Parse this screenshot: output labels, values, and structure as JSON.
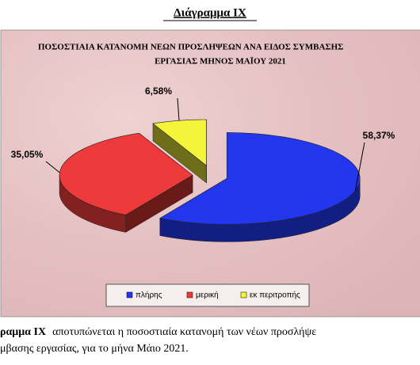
{
  "heading": "Διάγραμμα IX",
  "chart_data": {
    "type": "pie3d",
    "title": [
      "ΠΟΣΟΣΤΙΑΙΑ  ΚΑΤΑΝΟΜΗ  ΝΕΩΝ  ΠΡΟΣΛΗΨΕΩΝ ΑΝΑ ΕΙΔΟΣ ΣΥΜΒΑΣΗΣ",
      "ΕΡΓΑΣΙΑΣ ΜΗΝΟΣ  ΜΑΪΟΥ 2021"
    ],
    "categories": [
      "πλήρης",
      "μερική",
      "εκ περιτροπής"
    ],
    "values": [
      58.37,
      35.05,
      6.58
    ],
    "value_labels": [
      "58,37%",
      "35,05%",
      "6,58%"
    ],
    "colors": [
      "#2236ee",
      "#ee3a3a",
      "#f4f43a"
    ],
    "legend": "bottom"
  },
  "caption": {
    "lead": "ραμμα  IX",
    "line1": "αποτυπώνεται η ποσοστιαία κατανομή των νέων προσλήψε",
    "line2": "μβασης εργασίας,  για το μήνα Μάιο 2021."
  }
}
